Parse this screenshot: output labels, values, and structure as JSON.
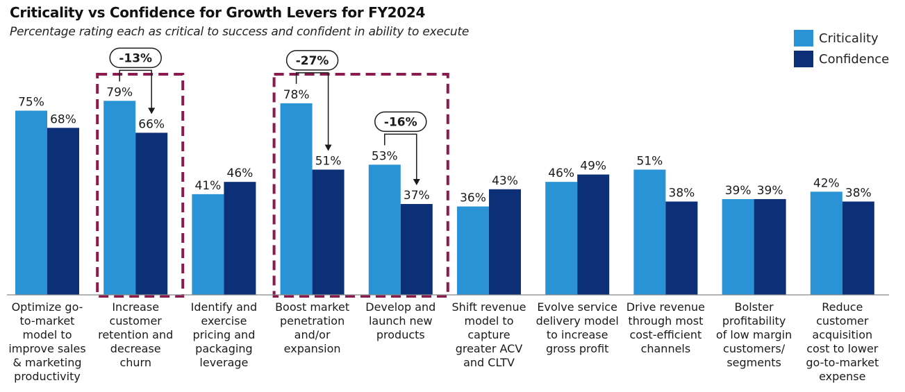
{
  "title": "Criticality vs Confidence for Growth Levers for FY2024",
  "subtitle": "Percentage rating each as critical to success and confident in ability to execute",
  "legend": [
    {
      "name": "Criticality",
      "color": "#2a93d5"
    },
    {
      "name": "Confidence",
      "color": "#0c2f78"
    }
  ],
  "chart_data": {
    "type": "bar",
    "title": "Criticality vs Confidence for Growth Levers for FY2024",
    "subtitle": "Percentage rating each as critical to success and confident in ability to execute",
    "categories": [
      [
        "Optimize go-",
        "to-market",
        "model to",
        "improve sales",
        "& marketing",
        "productivity"
      ],
      [
        "Increase",
        "customer",
        "retention and",
        "decrease",
        "churn"
      ],
      [
        "Identify and",
        "exercise",
        "pricing and",
        "packaging",
        "leverage"
      ],
      [
        "Boost market",
        "penetration",
        "and/or",
        "expansion"
      ],
      [
        "Develop and",
        "launch new",
        "products"
      ],
      [
        "Shift revenue",
        "model to",
        "capture",
        "greater ACV",
        "and CLTV"
      ],
      [
        "Evolve service",
        "delivery model",
        "to increase",
        "gross profit"
      ],
      [
        "Drive revenue",
        "through most",
        "cost-efficient",
        "channels"
      ],
      [
        "Bolster",
        "profitability",
        "of low margin",
        "customers/",
        "segments"
      ],
      [
        "Reduce",
        "customer",
        "acquisition",
        "cost to lower",
        "go-to-market",
        "expense"
      ]
    ],
    "series": [
      {
        "name": "Criticality",
        "color": "#2a93d5",
        "values": [
          75,
          79,
          41,
          78,
          53,
          36,
          46,
          51,
          39,
          42
        ],
        "labels": [
          "75%",
          "79%",
          "41%",
          "78%",
          "53%",
          "36%",
          "46%",
          "51%",
          "39%",
          "42%"
        ]
      },
      {
        "name": "Confidence",
        "color": "#0c2f78",
        "values": [
          68,
          66,
          46,
          51,
          37,
          43,
          49,
          38,
          39,
          38
        ],
        "labels": [
          "68%",
          "66%",
          "46%",
          "51%",
          "37%",
          "43%",
          "49%",
          "38%",
          "39%",
          "38%"
        ]
      }
    ],
    "ylim": [
      0,
      100
    ],
    "grid": false,
    "legend_position": "top-right",
    "annotations": [
      {
        "text": "-13%",
        "category_index": 1,
        "highlight_categories": [
          1
        ]
      },
      {
        "text": "-27%",
        "category_index": 3,
        "highlight_categories": [
          3,
          4
        ]
      },
      {
        "text": "-16%",
        "category_index": 4,
        "highlight_categories": []
      }
    ],
    "highlight_color": "#8b1a4f"
  }
}
